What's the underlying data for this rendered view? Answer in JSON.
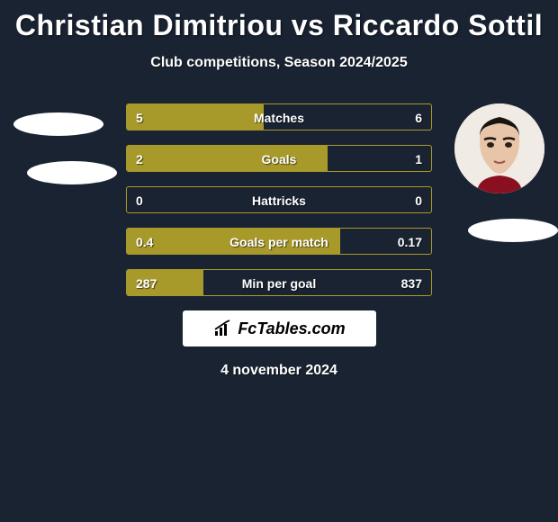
{
  "header": {
    "player1": "Christian Dimitriou",
    "vs": "vs",
    "player2": "Riccardo Sottil",
    "subtitle": "Club competitions, Season 2024/2025"
  },
  "colors": {
    "background": "#1a2332",
    "bar_fill": "#a89a2a",
    "bar_border": "#a89a2a",
    "bar_label": "#ffffff",
    "ellipse": "#ffffff"
  },
  "stats": [
    {
      "label": "Matches",
      "left_val": "5",
      "right_val": "6",
      "left_pct": 45,
      "right_pct": 0
    },
    {
      "label": "Goals",
      "left_val": "2",
      "right_val": "1",
      "left_pct": 66,
      "right_pct": 0
    },
    {
      "label": "Hattricks",
      "left_val": "0",
      "right_val": "0",
      "left_pct": 0,
      "right_pct": 0
    },
    {
      "label": "Goals per match",
      "left_val": "0.4",
      "right_val": "0.17",
      "left_pct": 70,
      "right_pct": 0
    },
    {
      "label": "Min per goal",
      "left_val": "287",
      "right_val": "837",
      "left_pct": 25,
      "right_pct": 0
    }
  ],
  "branding": {
    "text": "FcTables.com"
  },
  "date": "4 november 2024",
  "left_avatar": {
    "visible": false
  },
  "right_avatar": {
    "visible": true
  }
}
